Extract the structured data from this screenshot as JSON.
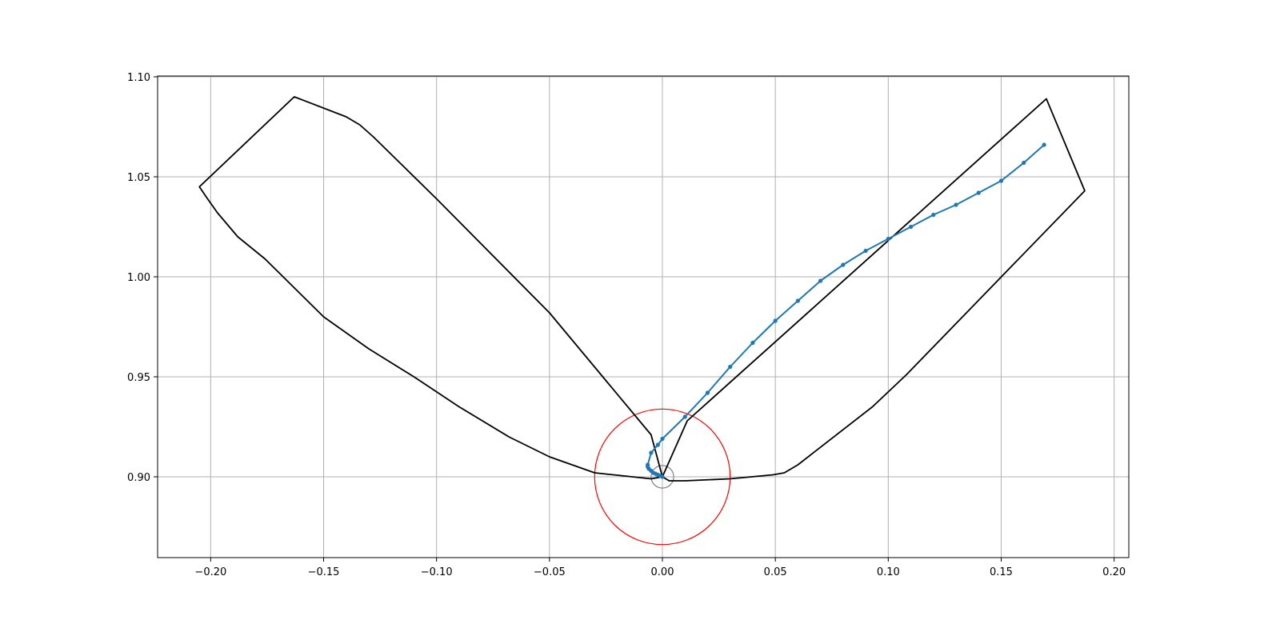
{
  "chart_data": {
    "type": "line",
    "title": "",
    "xlabel": "",
    "ylabel": "",
    "xlim": [
      -0.2235,
      0.2065
    ],
    "ylim": [
      0.8596,
      1.1004
    ],
    "grid": true,
    "xticks": [
      -0.2,
      -0.15,
      -0.1,
      -0.05,
      0.0,
      0.05,
      0.1,
      0.15,
      0.2
    ],
    "xtick_labels": [
      "−0.20",
      "−0.15",
      "−0.10",
      "−0.05",
      "0.00",
      "0.05",
      "0.10",
      "0.15",
      "0.20"
    ],
    "yticks": [
      0.9,
      0.95,
      1.0,
      1.05,
      1.1
    ],
    "ytick_labels": [
      "0.90",
      "0.95",
      "1.00",
      "1.05",
      "1.10"
    ],
    "colors": {
      "boundary": "#000000",
      "trajectory": "#1f77b4",
      "outer_circle": "#ff0000",
      "inner_circle": "#808080",
      "grid": "#b0b0b0"
    },
    "series": [
      {
        "name": "boundary",
        "color": "#000000",
        "closed": true,
        "x": [
          0.0,
          -0.005,
          -0.03,
          -0.05,
          -0.068,
          -0.09,
          -0.11,
          -0.13,
          -0.15,
          -0.176,
          -0.188,
          -0.197,
          -0.202,
          -0.205,
          -0.163,
          -0.14,
          -0.134,
          -0.128,
          -0.1,
          -0.05,
          -0.005,
          0.0
        ],
        "y": [
          0.9,
          0.899,
          0.902,
          0.91,
          0.92,
          0.935,
          0.95,
          0.964,
          0.98,
          1.009,
          1.02,
          1.032,
          1.04,
          1.045,
          1.09,
          1.08,
          1.076,
          1.07,
          1.039,
          0.982,
          0.921,
          0.9
        ]
      },
      {
        "name": "boundary-right",
        "color": "#000000",
        "closed": true,
        "x": [
          0.0,
          0.003,
          0.01,
          0.03,
          0.049,
          0.054,
          0.06,
          0.093,
          0.108,
          0.187,
          0.17,
          0.011,
          0.0
        ],
        "y": [
          0.9,
          0.898,
          0.898,
          0.899,
          0.901,
          0.902,
          0.906,
          0.935,
          0.951,
          1.043,
          1.089,
          0.928,
          0.9
        ]
      },
      {
        "name": "trajectory",
        "color": "#1f77b4",
        "marker": "o",
        "x": [
          0.0,
          -0.001,
          -0.002,
          -0.003,
          -0.004,
          -0.005,
          -0.006,
          -0.0065,
          -0.0065,
          -0.005,
          -0.002,
          0.0,
          0.01,
          0.02,
          0.03,
          0.04,
          0.05,
          0.06,
          0.07,
          0.08,
          0.09,
          0.1,
          0.11,
          0.12,
          0.13,
          0.14,
          0.15,
          0.16,
          0.169
        ],
        "y": [
          0.9,
          0.9005,
          0.901,
          0.9015,
          0.902,
          0.903,
          0.904,
          0.905,
          0.906,
          0.912,
          0.916,
          0.919,
          0.93,
          0.942,
          0.955,
          0.967,
          0.978,
          0.988,
          0.998,
          1.006,
          1.013,
          1.019,
          1.025,
          1.031,
          1.036,
          1.042,
          1.048,
          1.057,
          1.066
        ]
      }
    ],
    "circles": [
      {
        "name": "outer_circle",
        "cx": 0.0,
        "cy": 0.9,
        "r": 0.03,
        "color": "#ff0000"
      },
      {
        "name": "inner_circle",
        "cx": 0.0,
        "cy": 0.9,
        "r": 0.005,
        "color": "#808080"
      }
    ]
  }
}
